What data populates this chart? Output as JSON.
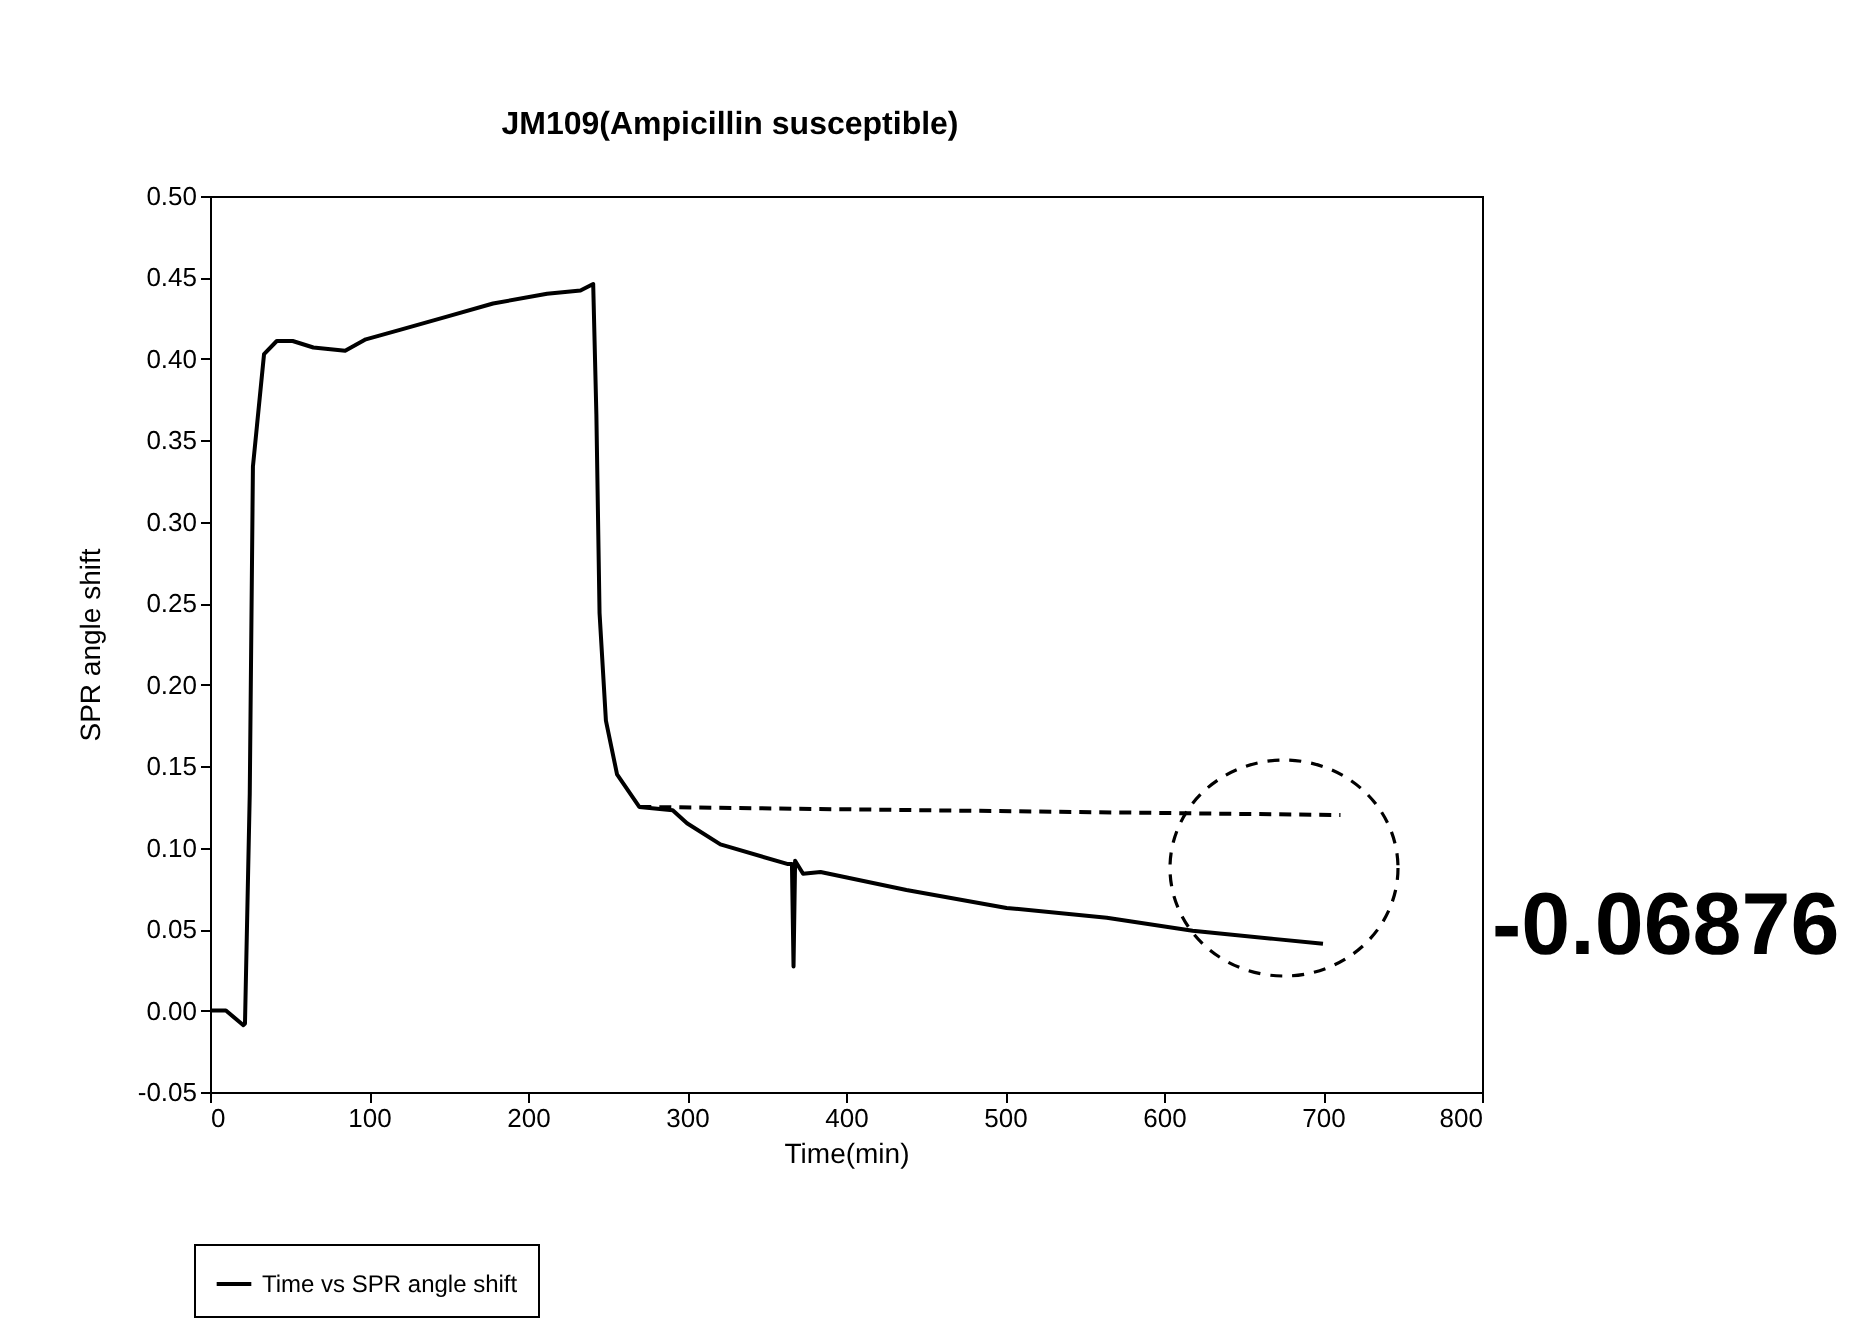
{
  "chart_data": {
    "type": "line",
    "title": "JM109(Ampicillin susceptible)",
    "xlabel": "Time(min)",
    "ylabel": "SPR angle shift",
    "series": [
      {
        "name": "Time vs SPR angle shift",
        "color": "#000000",
        "x": [
          1,
          10,
          21,
          22,
          25,
          27,
          34,
          42,
          52,
          65,
          85,
          98,
          120,
          149,
          178,
          212,
          233,
          241,
          243,
          245,
          249,
          256,
          270,
          291,
          300,
          321,
          363,
          366,
          367,
          368,
          373,
          384,
          438,
          501,
          564,
          618,
          669,
          700
        ],
        "values": [
          0.0,
          0.0,
          -0.009,
          -0.008,
          0.133,
          0.334,
          0.403,
          0.411,
          0.411,
          0.407,
          0.405,
          0.412,
          0.418,
          0.426,
          0.434,
          0.44,
          0.442,
          0.446,
          0.366,
          0.244,
          0.178,
          0.145,
          0.125,
          0.123,
          0.115,
          0.102,
          0.09,
          0.09,
          0.027,
          0.092,
          0.084,
          0.085,
          0.074,
          0.063,
          0.057,
          0.049,
          0.044,
          0.041
        ]
      },
      {
        "type": "line",
        "color": "#000000",
        "line_style": "dashed",
        "x": [
          270,
          711
        ],
        "values": [
          0.125,
          0.12
        ]
      }
    ],
    "xlim": [
      0,
      800
    ],
    "xticks": [
      0,
      100,
      200,
      300,
      400,
      500,
      600,
      700,
      800
    ],
    "ylim": [
      -0.05,
      0.5
    ],
    "yticks": [
      {
        "value": -0.05,
        "label": "-0.05"
      },
      {
        "value": 0,
        "label": "0.00"
      },
      {
        "value": 0.05,
        "label": "0.05"
      },
      {
        "value": 0.1,
        "label": "0.10"
      },
      {
        "value": 0.15,
        "label": "0.15"
      },
      {
        "value": 0.2,
        "label": "0.20"
      },
      {
        "value": 0.25,
        "label": "0.25"
      },
      {
        "value": 0.3,
        "label": "0.30"
      },
      {
        "value": 0.35,
        "label": "0.35"
      },
      {
        "value": 0.4,
        "label": "0.40"
      },
      {
        "value": 0.45,
        "label": "0.45"
      },
      {
        "value": 0.5,
        "label": "0.50"
      }
    ],
    "grid": false,
    "legend": "bottom left",
    "annotations": [
      "-0.06876"
    ]
  }
}
